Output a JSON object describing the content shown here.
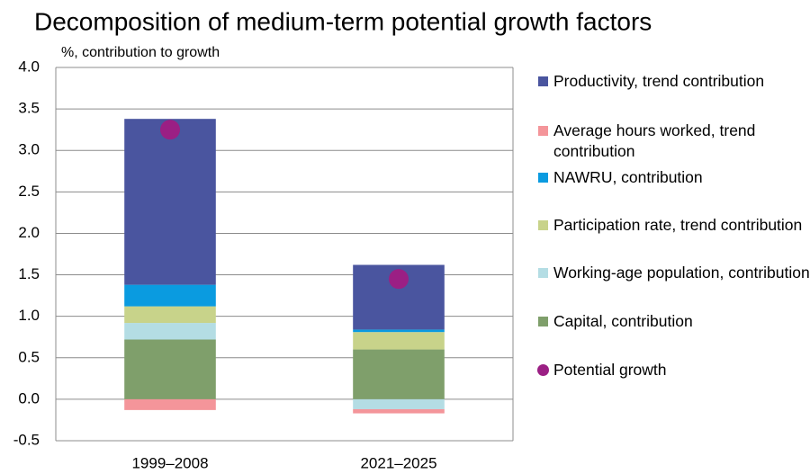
{
  "chart_data": {
    "type": "stacked_bar",
    "title": "Decomposition of medium-term potential growth factors",
    "subtitle": "%, contribution to growth",
    "categories": [
      "1999–2008",
      "2021–2025"
    ],
    "series": [
      {
        "name": "Productivity, trend contribution",
        "color": "#4a559f",
        "values": [
          2.0,
          0.78
        ]
      },
      {
        "name": "Average hours worked, trend contribution",
        "color": "#f4959a",
        "values": [
          -0.13,
          -0.05
        ]
      },
      {
        "name": "NAWRU, contribution",
        "color": "#0a9be0",
        "values": [
          0.26,
          0.03
        ]
      },
      {
        "name": "Participation rate, trend contribution",
        "color": "#c8d38a",
        "values": [
          0.2,
          0.21
        ]
      },
      {
        "name": "Working-age population, contribution",
        "color": "#b4dde4",
        "values": [
          0.2,
          -0.12
        ]
      },
      {
        "name": "Capital, contribution",
        "color": "#7f9f6b",
        "values": [
          0.72,
          0.6
        ]
      }
    ],
    "points": {
      "name": "Potential growth",
      "color": "#9b1f84",
      "values": [
        3.25,
        1.45
      ]
    },
    "ylim": [
      -0.5,
      4
    ],
    "yticks": [
      {
        "value": 4,
        "label": "4.0"
      },
      3.5,
      {
        "value": 3,
        "label": "3.0"
      },
      2.5,
      {
        "value": 2,
        "label": "2.0"
      },
      1.5,
      {
        "value": 1,
        "label": "1.0"
      },
      0.5,
      {
        "value": 0,
        "label": "0.0"
      },
      -0.5
    ],
    "grid": true
  }
}
